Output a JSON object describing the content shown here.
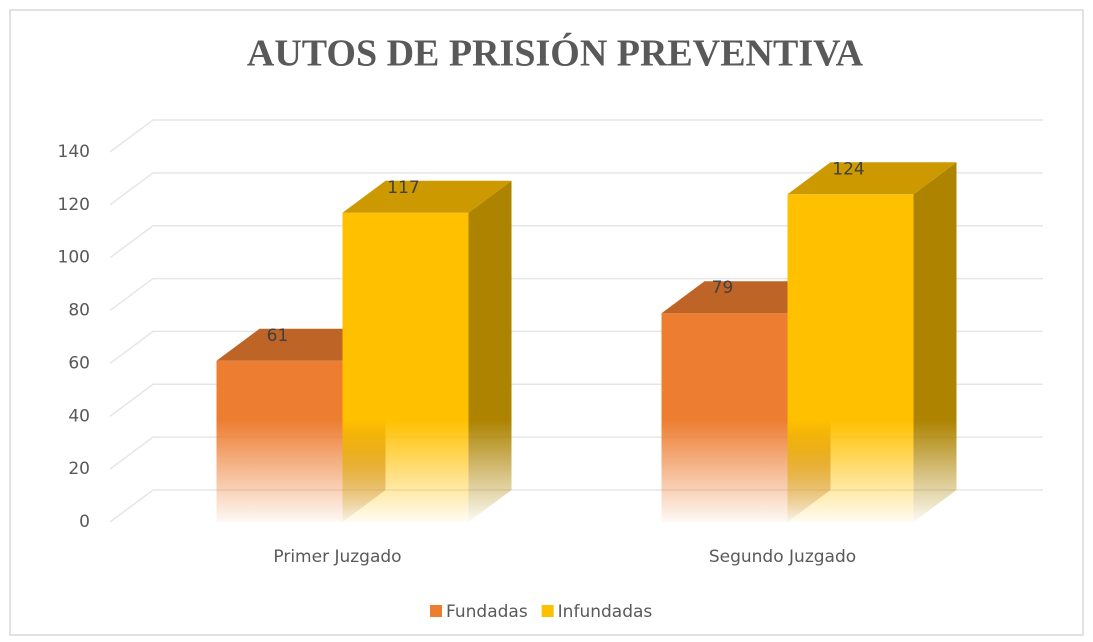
{
  "chart_data": {
    "type": "bar3d",
    "title": "AUTOS DE PRISIÓN PREVENTIVA",
    "categories": [
      "Primer Juzgado",
      "Segundo Juzgado"
    ],
    "series": [
      {
        "name": "Fundadas",
        "color": "#ED7D31",
        "values": [
          61,
          79
        ]
      },
      {
        "name": "Infundadas",
        "color": "#FFC000",
        "values": [
          117,
          124
        ]
      }
    ],
    "ylim": [
      0,
      140
    ],
    "yticks": [
      0,
      20,
      40,
      60,
      80,
      100,
      120,
      140
    ],
    "grid": true,
    "legend": "bottom"
  }
}
